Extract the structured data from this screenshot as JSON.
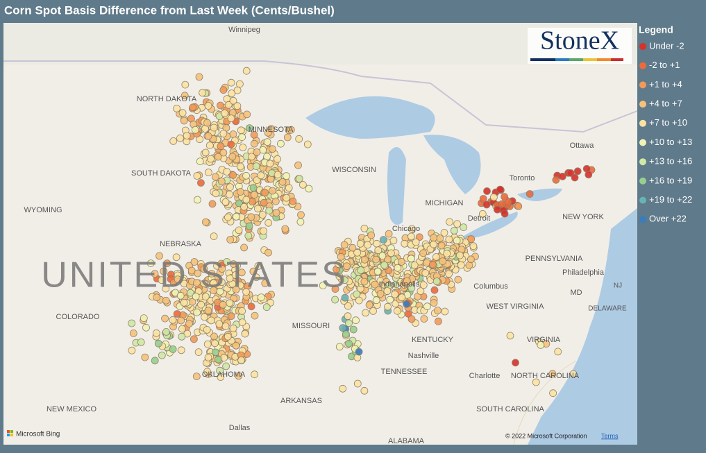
{
  "title": "Corn Spot Basis Difference from Last Week (Cents/Bushel)",
  "logo": "StoneX",
  "legend": {
    "title": "Legend",
    "items": [
      {
        "label": "Under -2",
        "color": "#d7312b"
      },
      {
        "label": "-2 to +1",
        "color": "#ec6a3d"
      },
      {
        "label": "+1 to +4",
        "color": "#f39a58"
      },
      {
        "label": "+4 to +7",
        "color": "#f6c27c"
      },
      {
        "label": "+7 to +10",
        "color": "#fbe3a3"
      },
      {
        "label": "+10 to +13",
        "color": "#f1f4b6"
      },
      {
        "label": "+13 to +16",
        "color": "#cfe8a6"
      },
      {
        "label": "+16 to +19",
        "color": "#96cf8f"
      },
      {
        "label": "+19 to +22",
        "color": "#67b3b5"
      },
      {
        "label": "Over +22",
        "color": "#3a7dbd"
      }
    ]
  },
  "map_labels": [
    "Winnipeg",
    "NORTH DAKOTA",
    "MINNESOTA",
    "SOUTH DAKOTA",
    "WISCONSIN",
    "WYOMING",
    "NEBRASKA",
    "UNITED STATES",
    "COLORADO",
    "MISSOURI",
    "KENTUCKY",
    "Chicago",
    "Detroit",
    "Toronto",
    "Ottawa",
    "NEW YORK",
    "PENNSYLVANIA",
    "Philadelphia",
    "NJ",
    "MD",
    "DELAWARE",
    "WEST VIRGINIA",
    "VIRGINIA",
    "Columbus",
    "Indianapolis",
    "TENNESSEE",
    "Nashville",
    "Charlotte",
    "NORTH CAROLINA",
    "SOUTH CAROLINA",
    "OKLAHOMA",
    "ARKANSAS",
    "NEW MEXICO",
    "Dallas",
    "ALABAMA",
    "MICHIGAN"
  ],
  "attribution": {
    "brand": "Microsoft Bing",
    "copyright": "© 2022 Microsoft Corporation",
    "terms": "Terms"
  }
}
